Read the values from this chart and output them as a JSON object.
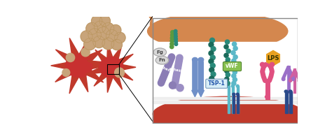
{
  "bg_color": "#ffffff",
  "platelet_color": "#c0392b",
  "platelet_highlight": "#d44",
  "bacteria_color": "#c8a47a",
  "bacteria_outline": "#b8935a",
  "membrane_top_color": "#d4874e",
  "membrane_bottom_color": "#c0392b",
  "adhesin1_color": "#8b7db5",
  "adhesin2_color": "#9b8ec4",
  "blue_receptor_color": "#7090c8",
  "tsp1_label": "TSP-1",
  "vwf_label": "vWF",
  "lps_label": "LPS",
  "fn_label": "Fn",
  "fg_label": "Fg",
  "teal_bead_color": "#2a8a7a",
  "light_teal_color": "#5bb8c8",
  "lps_color": "#e8a020",
  "pink_receptor_color": "#e05080",
  "purple_ab_color": "#9b70c8",
  "green_bead_color": "#5a9a40",
  "dark_teal_color": "#1a6a5a",
  "navy_color": "#2a4a8a",
  "tsp1_box_color": "#d8eef8",
  "vwf_box_color": "#88c050",
  "panel_border": "#888888",
  "zoom_lines_color": "#333333"
}
